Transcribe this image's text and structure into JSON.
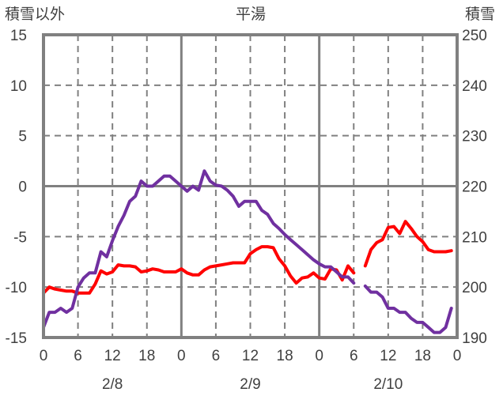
{
  "chart_data": {
    "type": "line",
    "title": "平湯",
    "ylabel_left": "積雪以外",
    "ylabel_right": "積雪",
    "ylim_left": [
      -15,
      15
    ],
    "ylim_right": [
      190,
      250
    ],
    "yticks_left": [
      15,
      10,
      5,
      0,
      -5,
      -10,
      -15
    ],
    "yticks_right": [
      250,
      240,
      230,
      220,
      210,
      200,
      190
    ],
    "x_hours_range": [
      0,
      72
    ],
    "xtick_labels": [
      "0",
      "6",
      "12",
      "18",
      "0",
      "6",
      "12",
      "18",
      "0",
      "6",
      "12",
      "18",
      "0"
    ],
    "date_labels": [
      {
        "label": "2/8",
        "hour": 12
      },
      {
        "label": "2/9",
        "hour": 36
      },
      {
        "label": "2/10",
        "hour": 60
      }
    ],
    "grid": true,
    "colors": {
      "temperature": "#FF0000",
      "snow": "#7030A0",
      "frame": "#808080",
      "grid": "#808080"
    },
    "series": [
      {
        "name": "積雪以外",
        "axis": "left",
        "color": "#FF0000",
        "values": [
          -10.6,
          -10.0,
          -10.2,
          -10.3,
          -10.4,
          -10.4,
          -10.6,
          -10.6,
          -10.6,
          -9.7,
          -8.4,
          -8.7,
          -8.5,
          -7.8,
          -7.9,
          -7.9,
          -8.0,
          -8.5,
          -8.4,
          -8.2,
          -8.3,
          -8.5,
          -8.5,
          -8.5,
          -8.2,
          -8.6,
          -8.8,
          -8.8,
          -8.3,
          -8.0,
          -7.9,
          -7.8,
          -7.7,
          -7.6,
          -7.6,
          -7.6,
          -6.7,
          -6.3,
          -6.0,
          -6.0,
          -6.1,
          -7.2,
          -7.9,
          -8.9,
          -9.6,
          -9.1,
          -9.0,
          -8.6,
          -9.1,
          -9.2,
          -8.2,
          -8.3,
          -9.3,
          -7.9,
          -8.6,
          null,
          -7.9,
          -6.3,
          -5.6,
          -5.3,
          -4.1,
          -4.0,
          -4.7,
          -3.5,
          -4.2,
          -5.0,
          -5.5,
          -6.3,
          -6.5,
          -6.5,
          -6.5,
          -6.4
        ]
      },
      {
        "name": "積雪",
        "axis": "right",
        "color": "#7030A0",
        "values": [
          192.0,
          195.0,
          195.0,
          195.8,
          195.0,
          195.8,
          200.0,
          201.8,
          202.8,
          202.8,
          207.0,
          206.0,
          209.2,
          212.0,
          214.2,
          217.0,
          218.0,
          221.0,
          220.0,
          220.0,
          221.0,
          222.0,
          222.0,
          221.0,
          220.0,
          219.0,
          220.0,
          219.2,
          223.0,
          221.0,
          220.2,
          220.0,
          219.2,
          218.0,
          216.0,
          217.0,
          217.0,
          217.0,
          215.2,
          214.4,
          212.6,
          211.6,
          210.4,
          209.4,
          208.4,
          207.4,
          206.4,
          205.4,
          204.6,
          204.0,
          204.0,
          203.0,
          202.0,
          202.0,
          200.8,
          null,
          200.2,
          199.0,
          199.0,
          198.0,
          195.8,
          195.8,
          195.0,
          195.0,
          193.8,
          193.0,
          193.0,
          192.0,
          191.0,
          191.0,
          192.0,
          195.8
        ]
      }
    ]
  }
}
